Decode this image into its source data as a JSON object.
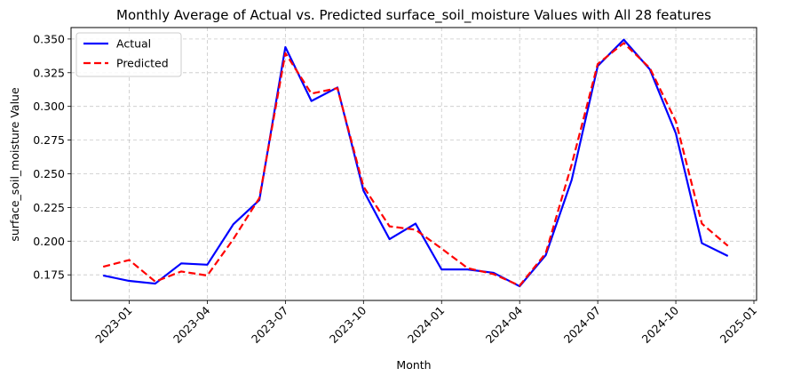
{
  "chart_data": {
    "type": "line",
    "title": "Monthly Average of Actual vs. Predicted surface_soil_moisture Values with All 28 features",
    "xlabel": "Month",
    "ylabel": "surface_soil_moisture Value",
    "x": [
      "2022-12",
      "2023-01",
      "2023-02",
      "2023-03",
      "2023-04",
      "2023-05",
      "2023-06",
      "2023-07",
      "2023-08",
      "2023-09",
      "2023-10",
      "2023-11",
      "2023-12",
      "2024-01",
      "2024-02",
      "2024-03",
      "2024-04",
      "2024-05",
      "2024-06",
      "2024-07",
      "2024-08",
      "2024-09",
      "2024-10",
      "2024-11",
      "2024-12"
    ],
    "series": [
      {
        "name": "Actual",
        "color": "#0000ff",
        "style": "solid",
        "values": [
          0.1745,
          0.1705,
          0.1685,
          0.1835,
          0.1825,
          0.2125,
          0.2305,
          0.344,
          0.304,
          0.314,
          0.2375,
          0.2015,
          0.213,
          0.179,
          0.179,
          0.1765,
          0.1665,
          0.1895,
          0.2455,
          0.33,
          0.3495,
          0.3275,
          0.28,
          0.1985,
          0.189
        ]
      },
      {
        "name": "Predicted",
        "color": "#ff0000",
        "style": "dashed",
        "values": [
          0.181,
          0.186,
          0.17,
          0.1775,
          0.1745,
          0.2015,
          0.232,
          0.3395,
          0.3095,
          0.3135,
          0.2405,
          0.211,
          0.2085,
          0.1945,
          0.18,
          0.1755,
          0.167,
          0.191,
          0.257,
          0.3315,
          0.347,
          0.3285,
          0.289,
          0.213,
          0.1965
        ]
      }
    ],
    "xticks": [
      "2023-01",
      "2023-04",
      "2023-07",
      "2023-10",
      "2024-01",
      "2024-04",
      "2024-07",
      "2024-10",
      "2025-01"
    ],
    "yticks": [
      "0.175",
      "0.200",
      "0.225",
      "0.250",
      "0.275",
      "0.300",
      "0.325",
      "0.350"
    ],
    "ylim": [
      0.156,
      0.3585
    ],
    "grid": true,
    "legend": "upper left"
  }
}
